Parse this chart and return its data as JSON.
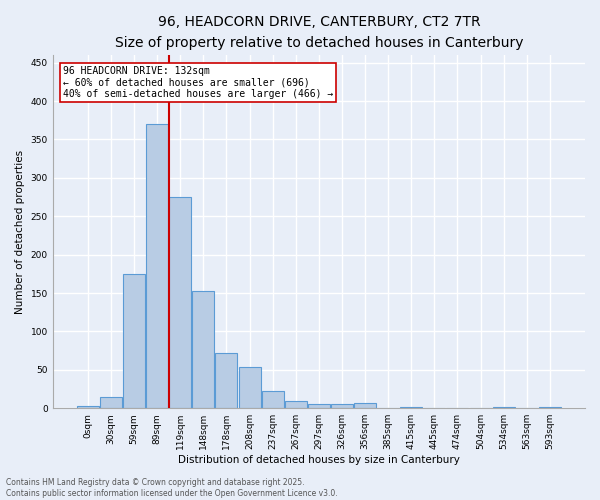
{
  "title_line1": "96, HEADCORN DRIVE, CANTERBURY, CT2 7TR",
  "title_line2": "Size of property relative to detached houses in Canterbury",
  "xlabel": "Distribution of detached houses by size in Canterbury",
  "ylabel": "Number of detached properties",
  "bar_values": [
    3,
    15,
    175,
    370,
    275,
    152,
    72,
    54,
    23,
    9,
    6,
    6,
    7,
    0,
    2,
    0,
    0,
    0,
    2,
    0,
    1
  ],
  "bar_labels": [
    "0sqm",
    "30sqm",
    "59sqm",
    "89sqm",
    "119sqm",
    "148sqm",
    "178sqm",
    "208sqm",
    "237sqm",
    "267sqm",
    "297sqm",
    "326sqm",
    "356sqm",
    "385sqm",
    "415sqm",
    "445sqm",
    "474sqm",
    "504sqm",
    "534sqm",
    "563sqm",
    "593sqm"
  ],
  "bar_color": "#b8cce4",
  "bar_edge_color": "#5b9bd5",
  "ylim": [
    0,
    460
  ],
  "yticks": [
    0,
    50,
    100,
    150,
    200,
    250,
    300,
    350,
    400,
    450
  ],
  "vline_color": "#cc0000",
  "annotation_text": "96 HEADCORN DRIVE: 132sqm\n← 60% of detached houses are smaller (696)\n40% of semi-detached houses are larger (466) →",
  "annotation_box_color": "#cc0000",
  "footer_line1": "Contains HM Land Registry data © Crown copyright and database right 2025.",
  "footer_line2": "Contains public sector information licensed under the Open Government Licence v3.0.",
  "background_color": "#e8eef8",
  "grid_color": "#ffffff",
  "title_fontsize": 10,
  "subtitle_fontsize": 8.5,
  "axis_label_fontsize": 7.5,
  "tick_fontsize": 6.5,
  "annotation_fontsize": 7,
  "footer_fontsize": 5.5
}
